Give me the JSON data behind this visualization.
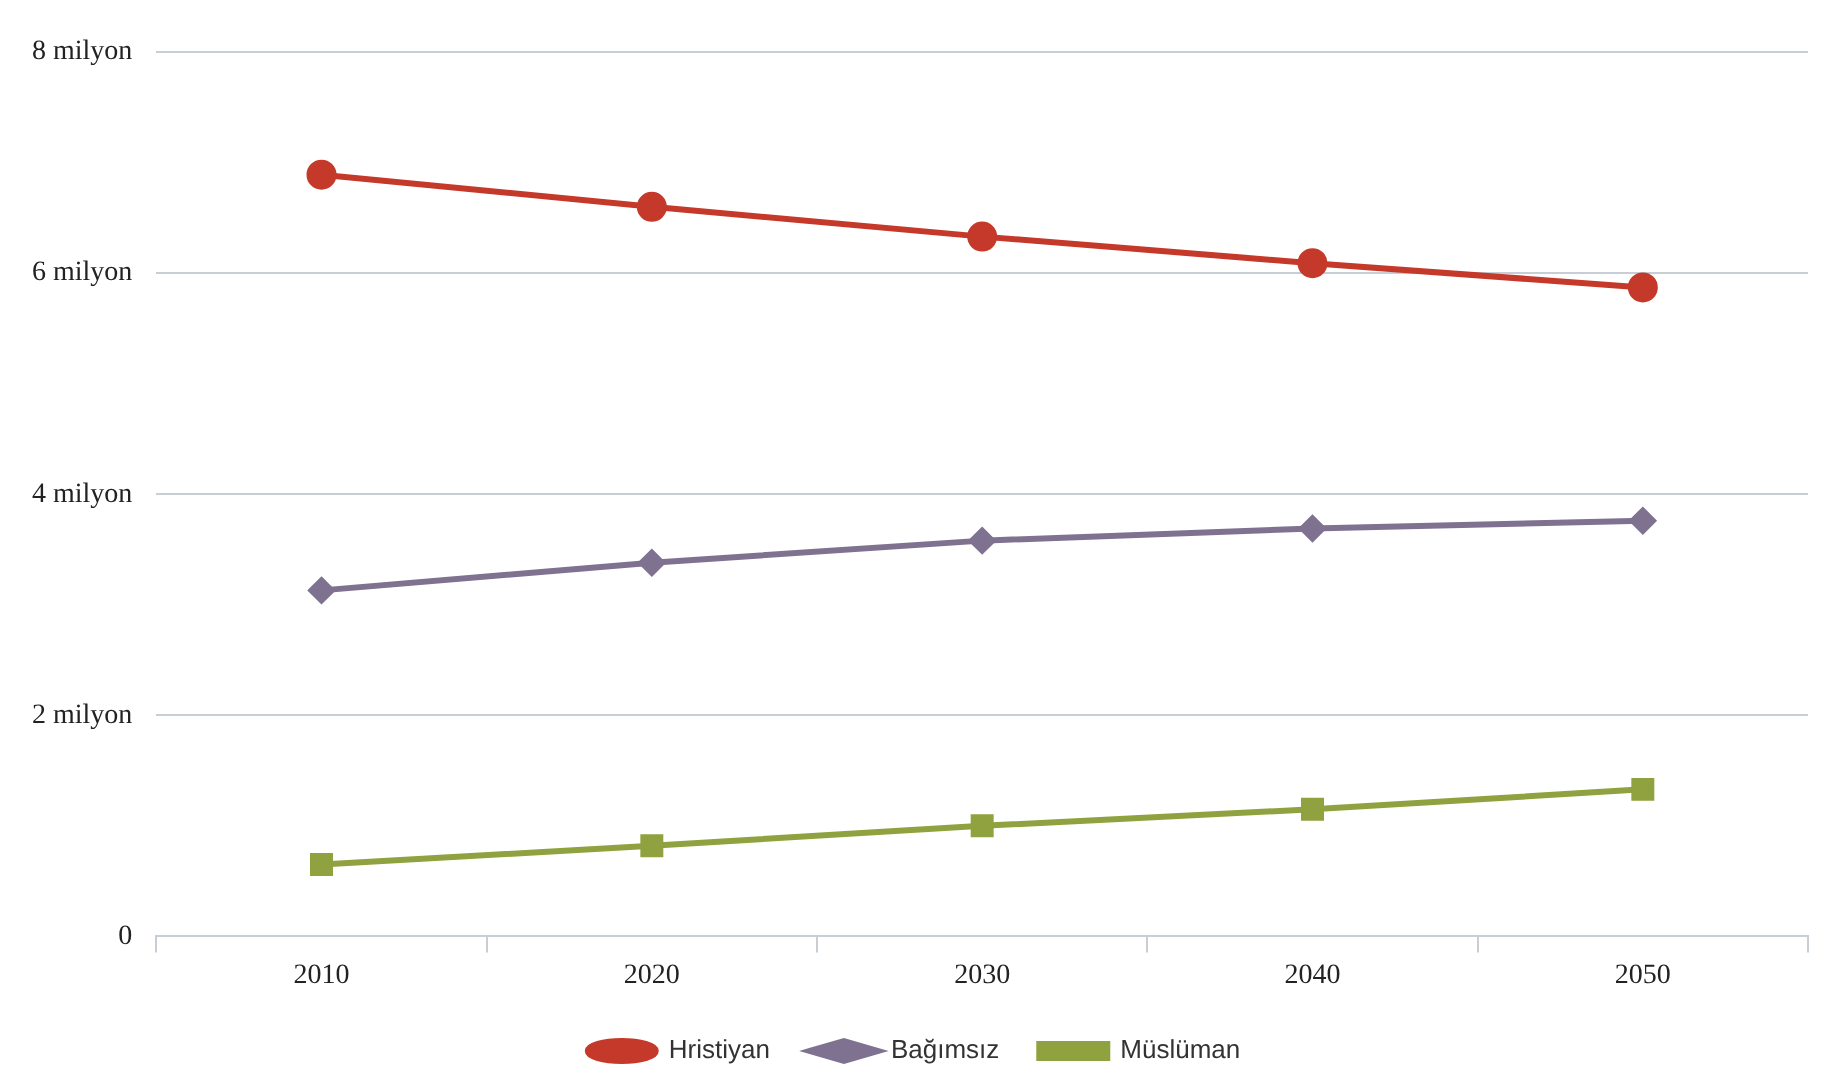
{
  "chart_data": {
    "type": "line",
    "categories": [
      "2010",
      "2020",
      "2030",
      "2040",
      "2050"
    ],
    "series": [
      {
        "name": "Hristiyan",
        "color": "#c5392a",
        "marker": "circle",
        "values": [
          6.89,
          6.6,
          6.33,
          6.09,
          5.87
        ]
      },
      {
        "name": "Bağımsız",
        "color": "#7f7190",
        "marker": "diamond",
        "values": [
          3.13,
          3.38,
          3.58,
          3.69,
          3.76
        ]
      },
      {
        "name": "Müslüman",
        "color": "#8fa23f",
        "marker": "square",
        "values": [
          0.65,
          0.82,
          1.0,
          1.15,
          1.33
        ]
      }
    ],
    "ylim": [
      0,
      8
    ],
    "yticks": [
      0,
      {
        "value": 2,
        "label": "2 milyon"
      },
      {
        "value": 4,
        "label": "4 milyon"
      },
      {
        "value": 6,
        "label": "6 milyon"
      },
      {
        "value": 8,
        "label": "8 milyon"
      }
    ],
    "grid": "y",
    "legend": "bottom",
    "line_style": "solid"
  }
}
